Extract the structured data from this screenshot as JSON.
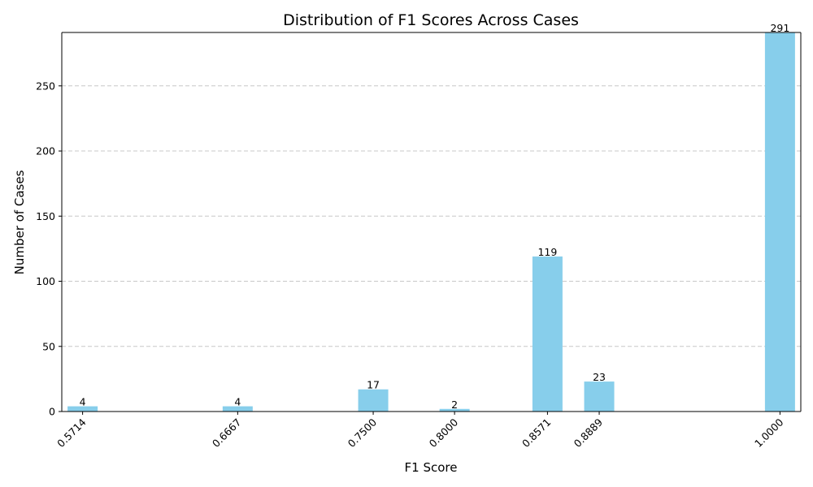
{
  "chart_data": {
    "type": "bar",
    "title": "Distribution of F1 Scores Across Cases",
    "xlabel": "F1 Score",
    "ylabel": "Number of Cases",
    "x": [
      0.5714,
      0.6667,
      0.75,
      0.8,
      0.8571,
      0.8889,
      1.0
    ],
    "x_tick_labels": [
      "0.5714",
      "0.6667",
      "0.7500",
      "0.8000",
      "0.8571",
      "0.8889",
      "1.0000"
    ],
    "values": [
      4,
      4,
      17,
      2,
      119,
      23,
      291
    ],
    "data_labels": [
      "4",
      "4",
      "17",
      "2",
      "119",
      "23",
      "291"
    ],
    "ylim": [
      0,
      291
    ],
    "xlim": [
      0.5586,
      1.0128
    ],
    "y_ticks": [
      0,
      50,
      100,
      150,
      200,
      250
    ],
    "y_tick_labels": [
      "0",
      "50",
      "100",
      "150",
      "200",
      "250"
    ],
    "grid": "y-dashed",
    "bar_color": "#87ceeb"
  }
}
